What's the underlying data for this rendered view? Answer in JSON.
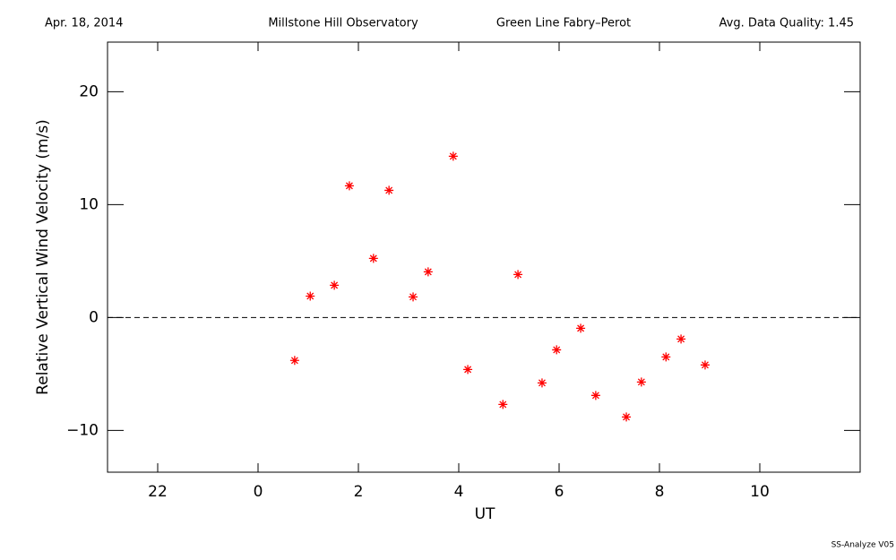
{
  "chart_data": {
    "type": "scatter",
    "header": {
      "date": "Apr. 18, 2014",
      "site": "Millstone Hill Observatory",
      "instrument": "Green Line Fabry–Perot",
      "quality": "Avg. Data Quality: 1.45"
    },
    "footer": "SS-Analyze V05",
    "x_label": "UT",
    "y_label": "Relative Vertical Wind Velocity (m/s)",
    "xlim": [
      -3,
      12
    ],
    "ylim": [
      -13.7,
      24.4
    ],
    "xticks": [
      {
        "value": -2,
        "label": "22"
      },
      0,
      2,
      4,
      6,
      8,
      10
    ],
    "yticks": [
      {
        "value": -10,
        "label": "−10"
      },
      0,
      10,
      20
    ],
    "hline": 0,
    "color": "#ff0000",
    "x": [
      0.73,
      1.04,
      1.52,
      1.82,
      2.3,
      2.61,
      3.09,
      3.39,
      3.89,
      4.18,
      4.88,
      5.18,
      5.66,
      5.95,
      6.43,
      6.73,
      7.34,
      7.64,
      8.13,
      8.43,
      8.91
    ],
    "values": [
      -3.8,
      1.9,
      2.86,
      11.67,
      5.24,
      11.27,
      1.83,
      4.05,
      14.29,
      -4.6,
      -7.7,
      3.81,
      -5.79,
      -2.86,
      -0.95,
      -6.9,
      -8.81,
      -5.71,
      -3.49,
      -1.9,
      -4.2
    ]
  }
}
